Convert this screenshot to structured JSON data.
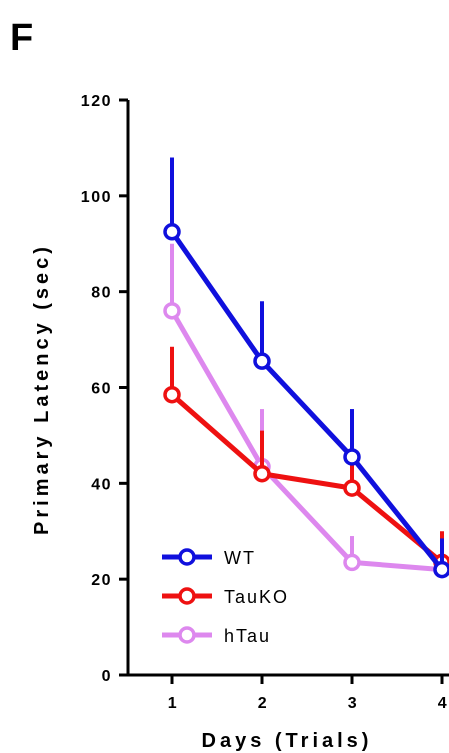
{
  "panel_label": "F",
  "chart_data": {
    "type": "line",
    "xlabel": "Days (Trials)",
    "ylabel": "Primary Latency (sec)",
    "x": [
      1,
      2,
      3,
      4
    ],
    "x_tick_labels": [
      "1",
      "2",
      "3",
      "4"
    ],
    "y_ticks": [
      0,
      20,
      40,
      60,
      80,
      100,
      120
    ],
    "y_tick_labels": [
      "0",
      "20",
      "40",
      "60",
      "80",
      "100",
      "120"
    ],
    "ylim": [
      0,
      120
    ],
    "xlim": [
      0.5,
      4
    ],
    "grid": false,
    "legend_position": "bottom-left",
    "series": [
      {
        "name": "WT",
        "color": "#1010dd",
        "values": [
          92.5,
          65.5,
          45.5,
          22
        ],
        "error_upper": [
          15.5,
          12.5,
          10,
          6.5
        ]
      },
      {
        "name": "TauKO",
        "color": "#ee1111",
        "values": [
          58.5,
          42,
          39,
          23.5
        ],
        "error_upper": [
          10,
          9,
          5,
          6.5
        ]
      },
      {
        "name": "hTau",
        "color": "#dd88ee",
        "values": [
          76,
          43.5,
          23.5,
          22
        ],
        "error_upper": [
          14,
          12,
          5.5,
          5
        ]
      }
    ]
  }
}
